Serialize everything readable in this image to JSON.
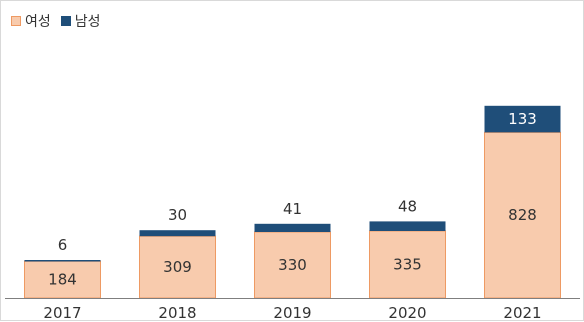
{
  "colors": {
    "female_fill": "#F8CBAD",
    "female_stroke": "#EE9A63",
    "male_fill": "#1F4E79",
    "axis": "#7f7f7f"
  },
  "legend": {
    "female_label": "여성",
    "male_label": "남성"
  },
  "chart_data": {
    "type": "bar",
    "stacked": true,
    "categories": [
      "2017",
      "2018",
      "2019",
      "2020",
      "2021"
    ],
    "series": [
      {
        "name": "여성",
        "values": [
          184,
          309,
          330,
          335,
          828
        ]
      },
      {
        "name": "남성",
        "values": [
          6,
          30,
          41,
          48,
          133
        ]
      }
    ],
    "ylim": [
      0,
      1000
    ],
    "grid": false,
    "legend_position": "top-left"
  }
}
